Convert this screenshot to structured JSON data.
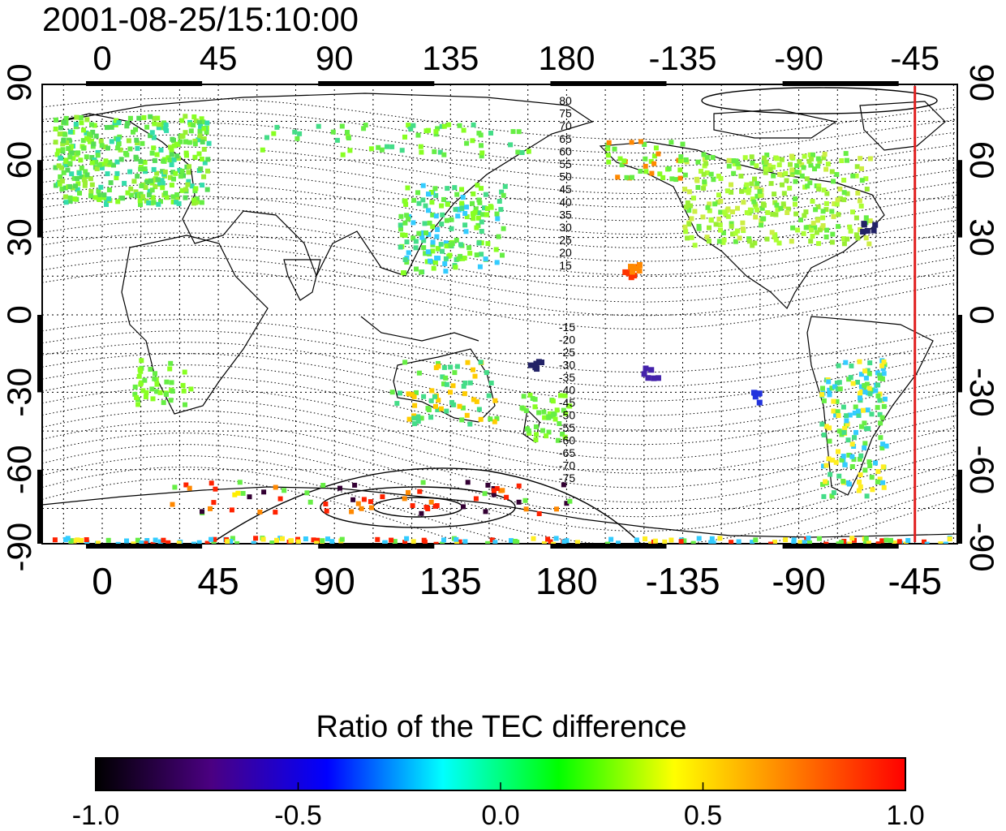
{
  "title": "2001-08-25/15:10:00",
  "map": {
    "lon_labels": [
      "0",
      "45",
      "90",
      "135",
      "180",
      "-135",
      "-90",
      "-45"
    ],
    "lat_labels": [
      "90",
      "60",
      "30",
      "0",
      "-30",
      "-60",
      "-90"
    ],
    "north_contour_labels": [
      "80",
      "75",
      "70",
      "65",
      "60",
      "55",
      "50",
      "45",
      "40",
      "35",
      "30",
      "25",
      "20",
      "15"
    ],
    "south_contour_labels": [
      "-15",
      "-20",
      "-25",
      "-30",
      "-35",
      "-40",
      "-45",
      "-50",
      "-55",
      "-60",
      "-65",
      "-70",
      "-75"
    ],
    "marker_longitude": -45,
    "marker_color": "#e02020"
  },
  "colorbar": {
    "title": "Ratio of the TEC difference",
    "tick_labels": [
      "-1.0",
      "-0.5",
      "0.0",
      "0.5",
      "1.0"
    ],
    "range": [
      -1.0,
      1.0
    ],
    "colors": [
      "#000000",
      "#4b0082",
      "#0000ff",
      "#00ffff",
      "#00ff00",
      "#ffff00",
      "#ff8000",
      "#ff0000"
    ]
  }
}
